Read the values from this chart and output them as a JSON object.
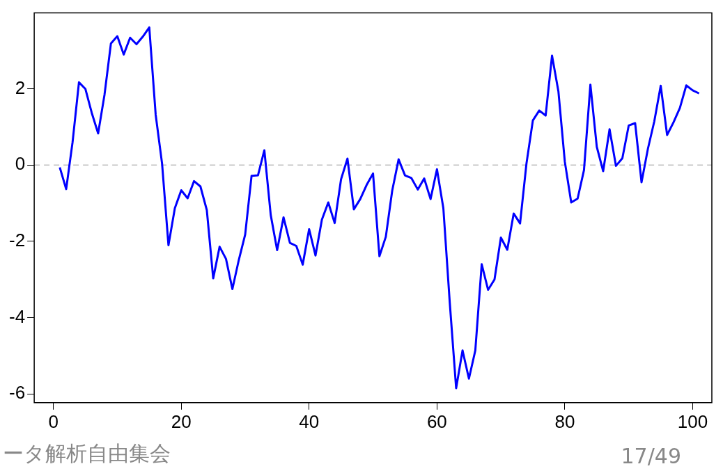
{
  "chart_data": {
    "type": "line",
    "x": [
      1,
      2,
      3,
      4,
      5,
      6,
      7,
      8,
      9,
      10,
      11,
      12,
      13,
      14,
      15,
      16,
      17,
      18,
      19,
      20,
      21,
      22,
      23,
      24,
      25,
      26,
      27,
      28,
      29,
      30,
      31,
      32,
      33,
      34,
      35,
      36,
      37,
      38,
      39,
      40,
      41,
      42,
      43,
      44,
      45,
      46,
      47,
      48,
      49,
      50,
      51,
      52,
      53,
      54,
      55,
      56,
      57,
      58,
      59,
      60,
      61,
      62,
      63,
      64,
      65,
      66,
      67,
      68,
      69,
      70,
      71,
      72,
      73,
      74,
      75,
      76,
      77,
      78,
      79,
      80,
      81,
      82,
      83,
      84,
      85,
      86,
      87,
      88,
      89,
      90,
      91,
      92,
      93,
      94,
      95,
      96,
      97,
      98,
      99,
      100,
      101
    ],
    "series": [
      {
        "color": "#0000ff",
        "values": [
          -0.06,
          -0.63,
          0.6,
          2.17,
          2.0,
          1.37,
          0.83,
          1.85,
          3.19,
          3.38,
          2.9,
          3.34,
          3.17,
          3.37,
          3.61,
          1.32,
          0.04,
          -2.1,
          -1.13,
          -0.66,
          -0.87,
          -0.42,
          -0.56,
          -1.18,
          -2.97,
          -2.14,
          -2.46,
          -3.25,
          -2.49,
          -1.82,
          -0.28,
          -0.27,
          0.39,
          -1.31,
          -2.23,
          -1.37,
          -2.04,
          -2.12,
          -2.61,
          -1.68,
          -2.37,
          -1.43,
          -0.98,
          -1.52,
          -0.37,
          0.17,
          -1.16,
          -0.89,
          -0.52,
          -0.22,
          -2.39,
          -1.88,
          -0.67,
          0.15,
          -0.27,
          -0.34,
          -0.64,
          -0.35,
          -0.89,
          -0.11,
          -1.13,
          -3.6,
          -5.85,
          -4.86,
          -5.6,
          -4.86,
          -2.6,
          -3.27,
          -3.0,
          -1.9,
          -2.22,
          -1.27,
          -1.53,
          0.04,
          1.17,
          1.43,
          1.3,
          2.87,
          1.93,
          0.09,
          -0.98,
          -0.88,
          -0.13,
          2.11,
          0.48,
          -0.16,
          0.94,
          -0.02,
          0.18,
          1.04,
          1.1,
          -0.45,
          0.43,
          1.15,
          2.08,
          0.79,
          1.12,
          1.5,
          2.09,
          1.96,
          1.88
        ]
      }
    ],
    "xlim": [
      -3,
      103
    ],
    "xticks": [
      0,
      20,
      40,
      60,
      80,
      100
    ],
    "ylim": [
      -6.23,
      3.99
    ],
    "yticks": [
      -6,
      -4,
      -2,
      0,
      2
    ],
    "ref_lines": [
      {
        "axis": "y",
        "value": 0,
        "color": "#c0c0c0",
        "line_style": "dashed"
      }
    ],
    "line_style": "solid",
    "marker": "none",
    "grid": false,
    "legend": false,
    "annotations": [
      "ータ解析自由集会",
      "17/49"
    ]
  }
}
